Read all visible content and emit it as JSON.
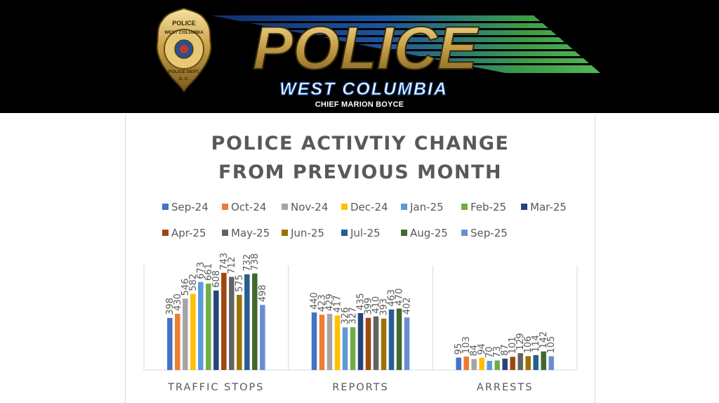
{
  "banner": {
    "logo_text": "POLICE",
    "city": "WEST COLUMBIA",
    "chief": "CHIEF MARION BOYCE",
    "badge_top": "POLICE",
    "badge_city": "WEST COLUMBIA",
    "badge_bottom": "POLICE DEPT.",
    "badge_state": "S. C.",
    "colors": {
      "gold": "#c9a24a",
      "blue": "#1e5aa8",
      "green": "#3fa34d",
      "city_text": "#ffffff",
      "city_stroke": "#1e5aa8"
    }
  },
  "chart_data": {
    "type": "bar",
    "title_lines": [
      "POLICE ACTIVTIY CHANGE",
      "FROM PREVIOUS MONTH"
    ],
    "xlabel": "",
    "ylabel": "",
    "categories": [
      "TRAFFIC STOPS",
      "REPORTS",
      "ARRESTS"
    ],
    "series": [
      {
        "name": "Sep-24",
        "color": "#4472c4",
        "values": [
          398,
          440,
          95
        ]
      },
      {
        "name": "Oct-24",
        "color": "#ed7d31",
        "values": [
          430,
          423,
          103
        ]
      },
      {
        "name": "Nov-24",
        "color": "#a5a5a5",
        "values": [
          546,
          429,
          84
        ]
      },
      {
        "name": "Dec-24",
        "color": "#ffc000",
        "values": [
          582,
          417,
          94
        ]
      },
      {
        "name": "Jan-25",
        "color": "#5b9bd5",
        "values": [
          673,
          326,
          70
        ]
      },
      {
        "name": "Feb-25",
        "color": "#70ad47",
        "values": [
          661,
          327,
          73
        ]
      },
      {
        "name": "Mar-25",
        "color": "#264478",
        "values": [
          608,
          435,
          87
        ]
      },
      {
        "name": "Apr-25",
        "color": "#9e480e",
        "values": [
          743,
          399,
          101
        ]
      },
      {
        "name": "May-25",
        "color": "#636363",
        "values": [
          712,
          410,
          129
        ]
      },
      {
        "name": "Jun-25",
        "color": "#997300",
        "values": [
          575,
          393,
          106
        ]
      },
      {
        "name": "Jul-25",
        "color": "#255e91",
        "values": [
          732,
          463,
          114
        ]
      },
      {
        "name": "Aug-25",
        "color": "#43682b",
        "values": [
          738,
          470,
          142
        ]
      },
      {
        "name": "Sep-25",
        "color": "#698ed0",
        "values": [
          498,
          402,
          105
        ]
      }
    ],
    "ylim": [
      0,
      800
    ],
    "grid": false,
    "legend_position": "top",
    "data_labels": true
  }
}
